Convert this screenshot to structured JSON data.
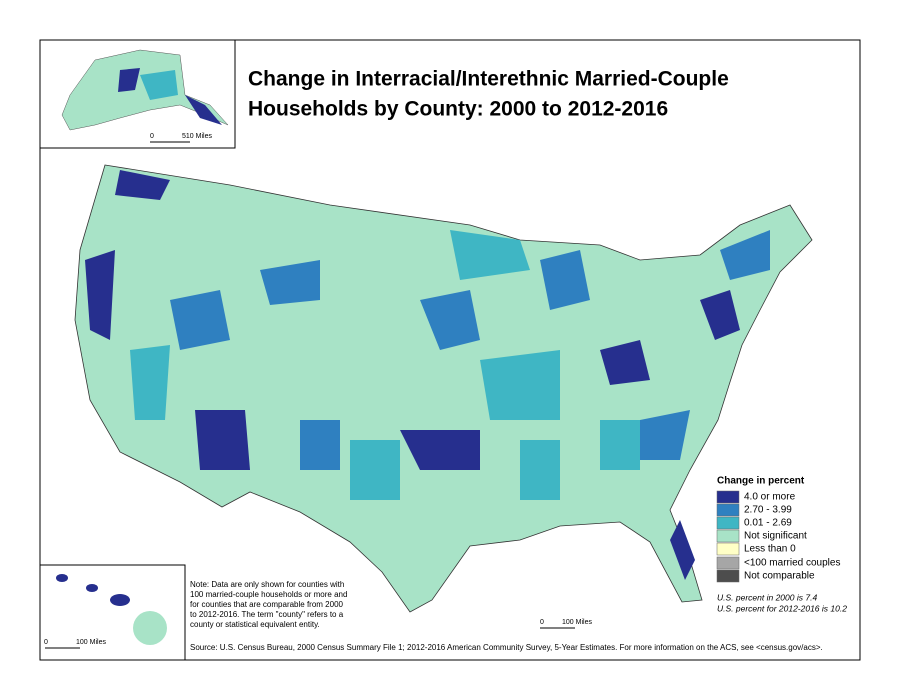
{
  "title": {
    "lines": [
      "Change in Interracial/Interethnic Married-Couple",
      "Households by County: 2000 to 2012-2016"
    ]
  },
  "legend": {
    "title": "Change in percent",
    "items": [
      {
        "label": "4.0 or more",
        "color": "#262f8e"
      },
      {
        "label": "2.70 - 3.99",
        "color": "#2f80c0"
      },
      {
        "label": "0.01 - 2.69",
        "color": "#3fb6c4"
      },
      {
        "label": "Not significant",
        "color": "#a8e3c7"
      },
      {
        "label": "Less than 0",
        "color": "#ffffc6"
      }
    ],
    "extra_items": [
      {
        "label": "<100 married couples",
        "color": "#a6a6a6"
      },
      {
        "label": "Not comparable",
        "color": "#4d4d4d"
      }
    ]
  },
  "us_percent": [
    "U.S. percent in 2000 is 7.4",
    "U.S. percent for 2012-2016 is 10.2"
  ],
  "note": {
    "lines": [
      "Note: Data are only shown for counties with",
      "100 married-couple households or more and",
      "for counties that are comparable from 2000",
      "to 2012-2016. The term \"county\" refers to a",
      "county or statistical equivalent entity."
    ]
  },
  "scales": {
    "alaska": {
      "zero": "0",
      "label": "510 Miles"
    },
    "hawaii": {
      "zero": "0",
      "label": "100 Miles"
    },
    "main": {
      "zero": "0",
      "label": "100 Miles"
    }
  },
  "source": "Source: U.S. Census Bureau, 2000 Census Summary File 1; 2012-2016 American Community Survey, 5-Year Estimates. For more information on the ACS, see <census.gov/acs>."
}
